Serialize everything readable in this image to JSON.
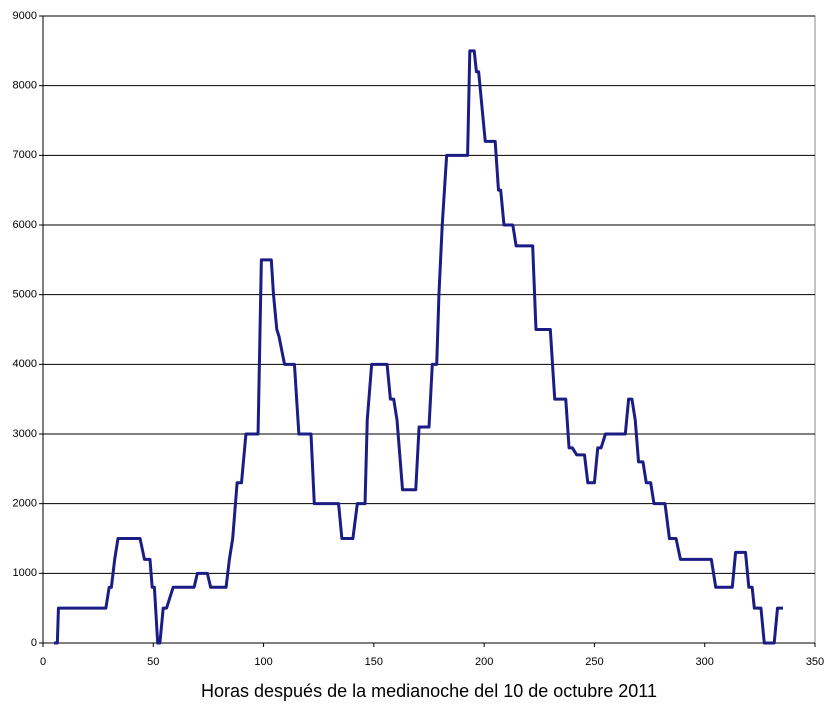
{
  "chart_data": {
    "type": "line",
    "x_label": "Horas después de la medianoche del 10 de octubre 2011",
    "xlim": [
      0,
      350
    ],
    "xticks": [
      0,
      50,
      100,
      150,
      200,
      250,
      300,
      350
    ],
    "ylim": [
      0,
      9000
    ],
    "yticks": [
      0,
      1000,
      2000,
      3000,
      4000,
      5000,
      6000,
      7000,
      8000,
      9000
    ],
    "grid": true,
    "series": [
      {
        "color": "#1c1c85",
        "x": [
          5,
          6.5,
          7,
          28.5,
          30,
          31,
          32.5,
          34,
          44,
          46,
          48.5,
          49.5,
          50.5,
          52,
          53,
          54.5,
          56,
          59,
          68.5,
          70,
          74.5,
          76,
          83,
          84.5,
          86,
          88,
          90,
          92,
          97.5,
          99,
          103.5,
          104.5,
          106,
          107,
          109.5,
          114,
          116,
          121.5,
          123,
          134,
          135.5,
          140.5,
          142.5,
          146,
          147,
          149,
          156,
          157.5,
          159,
          160.5,
          163,
          169,
          170.5,
          175,
          176.5,
          178.5,
          179.5,
          181,
          183,
          192.5,
          193.5,
          195.5,
          196.5,
          197.5,
          200.5,
          205,
          206.5,
          207.5,
          209,
          213,
          214.5,
          222,
          223.5,
          230,
          232,
          237,
          238.5,
          240,
          242,
          245.5,
          247,
          250,
          251.5,
          253,
          255,
          264,
          265.5,
          267,
          268.5,
          270,
          272,
          273.5,
          275.5,
          277,
          282,
          284,
          287,
          289,
          303,
          305,
          312.5,
          314,
          318.5,
          320,
          321.5,
          322.5,
          325.5,
          327,
          331.5,
          333,
          335.5
        ],
        "values": [
          0,
          0,
          500,
          500,
          800,
          800,
          1200,
          1500,
          1500,
          1200,
          1200,
          800,
          800,
          0,
          0,
          500,
          500,
          800,
          800,
          1000,
          1000,
          800,
          800,
          1200,
          1500,
          2300,
          2300,
          3000,
          3000,
          5500,
          5500,
          5000,
          4500,
          4400,
          4000,
          4000,
          3000,
          3000,
          2000,
          2000,
          1500,
          1500,
          2000,
          2000,
          3200,
          4000,
          4000,
          3500,
          3500,
          3200,
          2200,
          2200,
          3100,
          3100,
          4000,
          4000,
          5000,
          6000,
          7000,
          7000,
          8500,
          8500,
          8200,
          8200,
          7200,
          7200,
          6500,
          6500,
          6000,
          6000,
          5700,
          5700,
          4500,
          4500,
          3500,
          3500,
          2800,
          2800,
          2700,
          2700,
          2300,
          2300,
          2800,
          2800,
          3000,
          3000,
          3500,
          3500,
          3200,
          2600,
          2600,
          2300,
          2300,
          2000,
          2000,
          1500,
          1500,
          1200,
          1200,
          800,
          800,
          1300,
          1300,
          800,
          800,
          500,
          500,
          0,
          0,
          500,
          500
        ]
      }
    ]
  }
}
